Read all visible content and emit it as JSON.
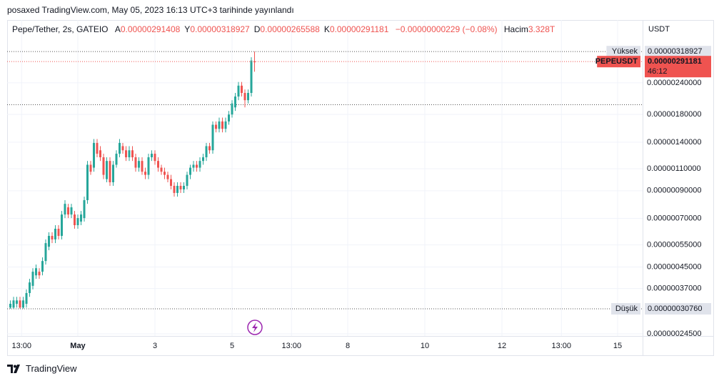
{
  "header": {
    "published": "posaxed TradingView.com, May 05, 2023 16:13 UTC+3 tarihinde yayınlandı"
  },
  "footer": {
    "brand": "TradingView"
  },
  "chart_data": {
    "type": "candlestick",
    "symbol": "Pepe/Tether, 2s, GATEIO",
    "legend": [
      {
        "name": "A",
        "value": "0.00000291408"
      },
      {
        "name": "Y",
        "value": "0.00000318927"
      },
      {
        "name": "D",
        "value": "0.00000265588"
      },
      {
        "name": "K",
        "value": "0.00000291181"
      }
    ],
    "change": "−0.00000000229 (−0.08%)",
    "volume": {
      "name": "Hacim",
      "value": "3.328T"
    },
    "y_axis_label": "USDT",
    "log_scale": true,
    "grid": true,
    "up_color": "#26a69a",
    "down_color": "#ef5350",
    "xlim": [
      -0.8333,
      15.648
    ],
    "ylim": [
      2.403e-07,
      4.25e-06
    ],
    "xticks": [
      {
        "value": -0.4583,
        "label": "13:00"
      },
      {
        "value": 1,
        "label": "May"
      },
      3,
      5,
      {
        "value": 6.5417,
        "label": "13:00"
      },
      8,
      10,
      12,
      {
        "value": 13.5417,
        "label": "13:00"
      },
      15
    ],
    "yticks": [
      {
        "value": 2.4e-06,
        "label": "0.00000240000"
      },
      {
        "value": 1.8e-06,
        "label": "0.00000180000"
      },
      {
        "value": 1.4e-06,
        "label": "0.00000140000"
      },
      {
        "value": 1.1e-06,
        "label": "0.00000110000"
      },
      {
        "value": 9e-07,
        "label": "0.00000090000"
      },
      {
        "value": 7e-07,
        "label": "0.00000070000"
      },
      {
        "value": 5.5e-07,
        "label": "0.00000055000"
      },
      {
        "value": 4.5e-07,
        "label": "0.00000045000"
      },
      {
        "value": 3.7e-07,
        "label": "0.00000037000"
      },
      {
        "value": 2.45e-07,
        "label": "0.00000024500"
      }
    ],
    "x": [
      -0.75,
      -0.6667,
      -0.5833,
      -0.5,
      -0.4167,
      -0.3333,
      -0.25,
      -0.1667,
      -0.0833,
      0,
      0.0833,
      0.1667,
      0.25,
      0.3333,
      0.4167,
      0.5,
      0.5833,
      0.6667,
      0.75,
      0.8333,
      0.9167,
      1,
      1.0833,
      1.1667,
      1.25,
      1.3333,
      1.4167,
      1.5,
      1.5833,
      1.6667,
      1.75,
      1.8333,
      1.9167,
      2,
      2.0833,
      2.1667,
      2.25,
      2.3333,
      2.4167,
      2.5,
      2.5833,
      2.6667,
      2.75,
      2.8333,
      2.9167,
      3,
      3.0833,
      3.1667,
      3.25,
      3.3333,
      3.4167,
      3.5,
      3.5833,
      3.6667,
      3.75,
      3.8333,
      3.9167,
      4,
      4.0833,
      4.1667,
      4.25,
      4.3333,
      4.4167,
      4.5,
      4.5833,
      4.6667,
      4.75,
      4.8333,
      4.9167,
      5,
      5.0833,
      5.1667,
      5.25,
      5.3333,
      5.4167,
      5.5,
      5.5833
    ],
    "open": [
      3.11e-07,
      3.11e-07,
      3.22e-07,
      3.32e-07,
      3.11e-07,
      3.22e-07,
      3.55e-07,
      3.79e-07,
      4.17e-07,
      4.31e-07,
      4.31e-07,
      4.75e-07,
      5.41e-07,
      5.97e-07,
      5.78e-07,
      6.37e-07,
      5.97e-07,
      7.25e-07,
      7.74e-07,
      7.25e-07,
      7.25e-07,
      6.58e-07,
      6.8e-07,
      7.02e-07,
      8.26e-07,
      1.14e-06,
      1.11e-06,
      1.39e-06,
      1.3e-06,
      1.22e-06,
      1e-06,
      1.18e-06,
      9.72e-07,
      1.14e-06,
      1.26e-06,
      1.35e-06,
      1.3e-06,
      1.22e-06,
      1.3e-06,
      1.22e-06,
      1.11e-06,
      1.18e-06,
      1.07e-06,
      1.04e-06,
      1.22e-06,
      1.26e-06,
      1.18e-06,
      1.11e-06,
      1.07e-06,
      1.04e-06,
      1e-06,
      9.41e-07,
      8.82e-07,
      9.41e-07,
      9.11e-07,
      9.41e-07,
      1.04e-06,
      1.11e-06,
      1.14e-06,
      1.11e-06,
      1.18e-06,
      1.22e-06,
      1.35e-06,
      1.3e-06,
      1.64e-06,
      1.58e-06,
      1.69e-06,
      1.58e-06,
      1.69e-06,
      1.8e-06,
      1.92e-06,
      2.12e-06,
      2.34e-06,
      2.19e-06,
      2.05e-06,
      2.19e-06,
      2.91408e-06
    ],
    "high": [
      3.32e-07,
      3.43e-07,
      3.43e-07,
      3.43e-07,
      3.43e-07,
      3.67e-07,
      4.04e-07,
      4.45e-07,
      4.6e-07,
      4.45e-07,
      4.91e-07,
      5.78e-07,
      6.17e-07,
      6.17e-07,
      6.58e-07,
      6.58e-07,
      7.49e-07,
      8.26e-07,
      7.99e-07,
      7.99e-07,
      7.49e-07,
      7.25e-07,
      7.49e-07,
      8.53e-07,
      1.18e-06,
      1.18e-06,
      1.44e-06,
      1.44e-06,
      1.35e-06,
      1.26e-06,
      1.22e-06,
      1.22e-06,
      1.18e-06,
      1.3e-06,
      1.44e-06,
      1.39e-06,
      1.35e-06,
      1.35e-06,
      1.35e-06,
      1.26e-06,
      1.22e-06,
      1.22e-06,
      1.11e-06,
      1.26e-06,
      1.3e-06,
      1.3e-06,
      1.22e-06,
      1.14e-06,
      1.11e-06,
      1.07e-06,
      1.04e-06,
      9.72e-07,
      9.72e-07,
      9.72e-07,
      9.72e-07,
      1.07e-06,
      1.14e-06,
      1.18e-06,
      1.18e-06,
      1.22e-06,
      1.26e-06,
      1.39e-06,
      1.39e-06,
      1.69e-06,
      1.69e-06,
      1.75e-06,
      1.75e-06,
      1.75e-06,
      1.86e-06,
      2.05e-06,
      2.19e-06,
      2.42e-06,
      2.42e-06,
      2.26e-06,
      2.26e-06,
      3.03e-06,
      3.18927e-06
    ],
    "low": [
      3.076e-07,
      3.08e-07,
      3.11e-07,
      3.08e-07,
      3.08e-07,
      3.11e-07,
      3.43e-07,
      3.67e-07,
      4.04e-07,
      4.04e-07,
      4.17e-07,
      4.6e-07,
      5.24e-07,
      5.59e-07,
      5.59e-07,
      5.78e-07,
      5.78e-07,
      7.02e-07,
      7.02e-07,
      7.02e-07,
      6.37e-07,
      6.37e-07,
      6.58e-07,
      6.8e-07,
      7.99e-07,
      1.04e-06,
      1.07e-06,
      1.22e-06,
      1.18e-06,
      1e-06,
      9.72e-07,
      9.41e-07,
      9.41e-07,
      1.11e-06,
      1.22e-06,
      1.26e-06,
      1.18e-06,
      1.18e-06,
      1.18e-06,
      1.07e-06,
      1.07e-06,
      1.04e-06,
      1e-06,
      1e-06,
      1.18e-06,
      1.14e-06,
      1.07e-06,
      1.04e-06,
      1e-06,
      9.72e-07,
      9.11e-07,
      8.53e-07,
      8.53e-07,
      8.82e-07,
      8.82e-07,
      9.11e-07,
      1e-06,
      1.07e-06,
      1.07e-06,
      1.07e-06,
      1.14e-06,
      1.18e-06,
      1.26e-06,
      1.26e-06,
      1.53e-06,
      1.53e-06,
      1.53e-06,
      1.53e-06,
      1.64e-06,
      1.75e-06,
      1.86e-06,
      2.05e-06,
      2.12e-06,
      1.92e-06,
      1.99e-06,
      2.12e-06,
      2.65588e-06
    ],
    "close": [
      3.22e-07,
      3.32e-07,
      3.32e-07,
      3.11e-07,
      3.32e-07,
      3.55e-07,
      3.91e-07,
      4.31e-07,
      4.45e-07,
      4.17e-07,
      4.75e-07,
      5.59e-07,
      5.97e-07,
      5.78e-07,
      6.37e-07,
      5.97e-07,
      7.25e-07,
      7.99e-07,
      7.25e-07,
      7.74e-07,
      6.58e-07,
      7.02e-07,
      7.25e-07,
      8.26e-07,
      1.14e-06,
      1.07e-06,
      1.39e-06,
      1.26e-06,
      1.22e-06,
      1.04e-06,
      1.18e-06,
      9.72e-07,
      1.14e-06,
      1.26e-06,
      1.39e-06,
      1.3e-06,
      1.22e-06,
      1.3e-06,
      1.22e-06,
      1.11e-06,
      1.18e-06,
      1.07e-06,
      1.04e-06,
      1.22e-06,
      1.26e-06,
      1.18e-06,
      1.11e-06,
      1.07e-06,
      1.04e-06,
      1e-06,
      9.41e-07,
      8.82e-07,
      9.41e-07,
      9.11e-07,
      9.41e-07,
      1.04e-06,
      1.11e-06,
      1.14e-06,
      1.11e-06,
      1.18e-06,
      1.22e-06,
      1.35e-06,
      1.3e-06,
      1.64e-06,
      1.58e-06,
      1.69e-06,
      1.58e-06,
      1.69e-06,
      1.8e-06,
      1.99e-06,
      2.12e-06,
      2.34e-06,
      2.19e-06,
      2.05e-06,
      2.19e-06,
      2.94e-06,
      2.91181e-06
    ],
    "price_markers": [
      {
        "label": "Yüksek",
        "value": 3.18927e-06,
        "value_label": "0.00000318927",
        "color": "#e0e3eb"
      },
      {
        "label": "PEPEUSDT",
        "value": 2.91181e-06,
        "value_label": "0.00000291181",
        "countdown": "46:12",
        "color": "#ef5350"
      },
      {
        "label": "Düşük",
        "value": 3.076e-07,
        "value_label": "0.00000030760",
        "color": "#e0e3eb"
      }
    ]
  }
}
